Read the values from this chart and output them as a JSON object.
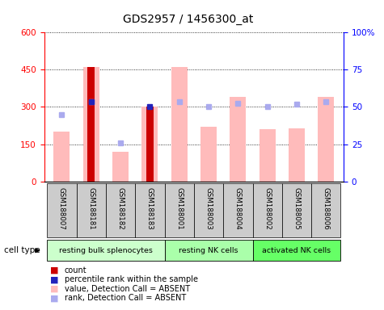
{
  "title": "GDS2957 / 1456300_at",
  "samples": [
    "GSM188007",
    "GSM188181",
    "GSM188182",
    "GSM188183",
    "GSM188001",
    "GSM188003",
    "GSM188004",
    "GSM188002",
    "GSM188005",
    "GSM188006"
  ],
  "cell_groups": [
    {
      "label": "resting bulk splenocytes",
      "start": 0,
      "end": 4
    },
    {
      "label": "resting NK cells",
      "start": 4,
      "end": 7
    },
    {
      "label": "activated NK cells",
      "start": 7,
      "end": 10
    }
  ],
  "group_colors": [
    "#ccffcc",
    "#aaffaa",
    "#66ff66"
  ],
  "value_bars": [
    200,
    460,
    120,
    300,
    460,
    220,
    340,
    210,
    215,
    340
  ],
  "count_bars": [
    null,
    460,
    null,
    300,
    null,
    null,
    null,
    null,
    null,
    null
  ],
  "rank_squares": [
    270,
    320,
    155,
    null,
    320,
    300,
    315,
    300,
    310,
    320
  ],
  "percentile_squares": [
    null,
    320,
    null,
    300,
    null,
    null,
    null,
    null,
    null,
    null
  ],
  "left_ylim": [
    0,
    600
  ],
  "right_ylim": [
    0,
    100
  ],
  "left_yticks": [
    0,
    150,
    300,
    450,
    600
  ],
  "right_yticks": [
    0,
    25,
    50,
    75,
    100
  ],
  "right_yticklabels": [
    "0",
    "25",
    "50",
    "75",
    "100%"
  ],
  "value_bar_color": "#ffbbbb",
  "count_bar_color": "#cc0000",
  "rank_square_color": "#aaaaee",
  "percentile_square_color": "#2222bb",
  "sample_bg_color": "#cccccc",
  "legend_colors": [
    "#cc0000",
    "#2222bb",
    "#ffbbbb",
    "#aaaaee"
  ],
  "legend_labels": [
    "count",
    "percentile rank within the sample",
    "value, Detection Call = ABSENT",
    "rank, Detection Call = ABSENT"
  ],
  "cell_type_label": "cell type",
  "title_fontsize": 10,
  "tick_fontsize": 7.5
}
